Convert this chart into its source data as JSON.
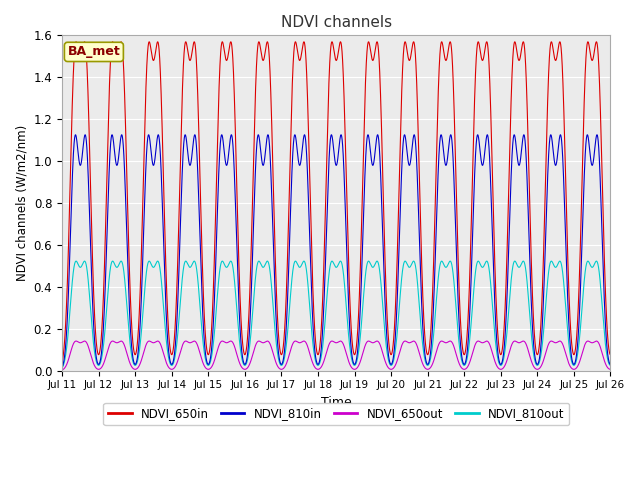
{
  "title": "NDVI channels",
  "xlabel": "Time",
  "ylabel": "NDVI channels (W/m2/nm)",
  "ylim": [
    0.0,
    1.6
  ],
  "yticks": [
    0.0,
    0.2,
    0.4,
    0.6,
    0.8,
    1.0,
    1.2,
    1.4,
    1.6
  ],
  "xtick_labels": [
    "Jul 11",
    "Jul 12",
    "Jul 13",
    "Jul 14",
    "Jul 15",
    "Jul 16",
    "Jul 17",
    "Jul 18",
    "Jul 19",
    "Jul 20",
    "Jul 21",
    "Jul 22",
    "Jul 23",
    "Jul 24",
    "Jul 25",
    "Jul 26"
  ],
  "colors": {
    "NDVI_650in": "#dd0000",
    "NDVI_810in": "#0000cc",
    "NDVI_650out": "#cc00cc",
    "NDVI_810out": "#00cccc"
  },
  "peaks": {
    "NDVI_650in": 1.44,
    "NDVI_810in": 1.07,
    "NDVI_650out": 0.13,
    "NDVI_810out": 0.48
  },
  "widths": {
    "NDVI_650in": 0.13,
    "NDVI_810in": 0.12,
    "NDVI_650out": 0.13,
    "NDVI_810out": 0.13
  },
  "annotation_text": "BA_met",
  "fig_bg": "#ffffff",
  "plot_bg": "#ebebeb",
  "grid_color": "#ffffff",
  "plot_order": [
    "NDVI_810out",
    "NDVI_650out",
    "NDVI_810in",
    "NDVI_650in"
  ],
  "legend_order": [
    "NDVI_650in",
    "NDVI_810in",
    "NDVI_650out",
    "NDVI_810out"
  ]
}
